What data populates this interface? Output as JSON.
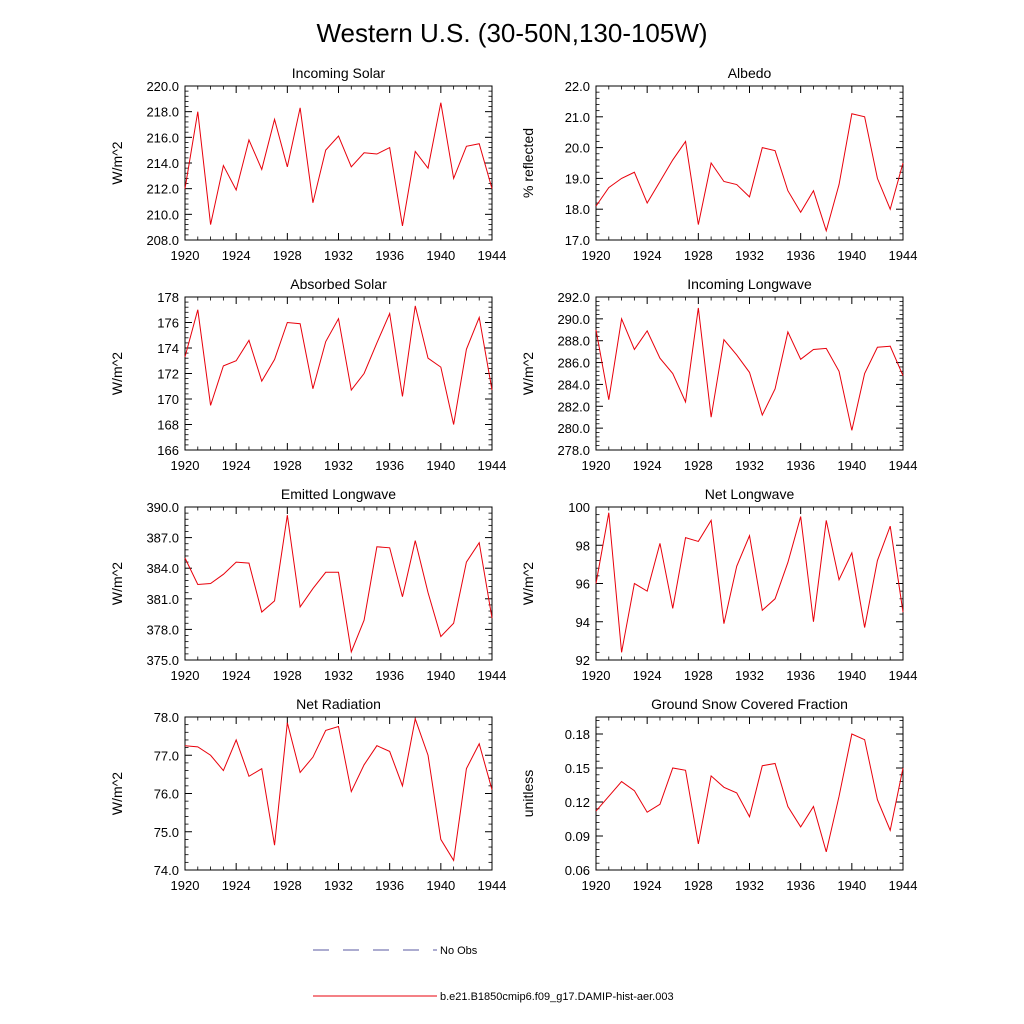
{
  "page_title": "Western U.S. (30-50N,130-105W)",
  "legend": {
    "obs_label": "No Obs",
    "model_label": "b.e21.B1850cmip6.f09_g17.DAMIP-hist-aer.003",
    "obs_color": "#5a5aa0",
    "model_color": "#e8000b"
  },
  "chart_data": [
    {
      "type": "line",
      "title": "Incoming Solar",
      "ylabel": "W/m^2",
      "x": [
        1920,
        1921,
        1922,
        1923,
        1924,
        1925,
        1926,
        1927,
        1928,
        1929,
        1930,
        1931,
        1932,
        1933,
        1934,
        1935,
        1936,
        1937,
        1938,
        1939,
        1940,
        1941,
        1942,
        1943,
        1944
      ],
      "y": [
        212.0,
        218.0,
        209.2,
        213.8,
        211.9,
        215.8,
        213.5,
        217.4,
        213.7,
        218.3,
        210.9,
        215.0,
        216.1,
        213.7,
        214.8,
        214.7,
        215.2,
        209.1,
        214.9,
        213.6,
        218.7,
        212.8,
        215.3,
        215.5,
        212.0
      ],
      "xlim": [
        1920,
        1944
      ],
      "ylim": [
        208.0,
        220.0
      ],
      "x_ticks": [
        1920,
        1924,
        1928,
        1932,
        1936,
        1940,
        1944
      ],
      "y_ticks": [
        "208.0",
        "210.0",
        "212.0",
        "214.0",
        "216.0",
        "218.0",
        "220.0"
      ],
      "grid": false
    },
    {
      "type": "line",
      "title": "Albedo",
      "ylabel": "% reflected",
      "x": [
        1920,
        1921,
        1922,
        1923,
        1924,
        1925,
        1926,
        1927,
        1928,
        1929,
        1930,
        1931,
        1932,
        1933,
        1934,
        1935,
        1936,
        1937,
        1938,
        1939,
        1940,
        1941,
        1942,
        1943,
        1944
      ],
      "y": [
        18.1,
        18.7,
        19.0,
        19.2,
        18.2,
        18.9,
        19.6,
        20.2,
        17.5,
        19.5,
        18.9,
        18.8,
        18.4,
        20.0,
        19.9,
        18.6,
        17.9,
        18.6,
        17.3,
        18.8,
        21.1,
        21.0,
        19.0,
        18.0,
        19.5
      ],
      "xlim": [
        1920,
        1944
      ],
      "ylim": [
        17.0,
        22.0
      ],
      "x_ticks": [
        1920,
        1924,
        1928,
        1932,
        1936,
        1940,
        1944
      ],
      "y_ticks": [
        "17.0",
        "18.0",
        "19.0",
        "20.0",
        "21.0",
        "22.0"
      ],
      "grid": false
    },
    {
      "type": "line",
      "title": "Absorbed Solar",
      "ylabel": "W/m^2",
      "x": [
        1920,
        1921,
        1922,
        1923,
        1924,
        1925,
        1926,
        1927,
        1928,
        1929,
        1930,
        1931,
        1932,
        1933,
        1934,
        1935,
        1936,
        1937,
        1938,
        1939,
        1940,
        1941,
        1942,
        1943,
        1944
      ],
      "y": [
        173.3,
        177.0,
        169.5,
        172.6,
        173.0,
        174.6,
        171.4,
        173.1,
        176.0,
        175.9,
        170.8,
        174.5,
        176.3,
        170.7,
        172.0,
        174.4,
        176.7,
        170.2,
        177.3,
        173.2,
        172.5,
        168.0,
        173.9,
        176.4,
        170.7
      ],
      "xlim": [
        1920,
        1944
      ],
      "ylim": [
        166,
        178
      ],
      "x_ticks": [
        1920,
        1924,
        1928,
        1932,
        1936,
        1940,
        1944
      ],
      "y_ticks": [
        "166",
        "168",
        "170",
        "172",
        "174",
        "176",
        "178"
      ],
      "grid": false
    },
    {
      "type": "line",
      "title": "Incoming Longwave",
      "ylabel": "W/m^2",
      "x": [
        1920,
        1921,
        1922,
        1923,
        1924,
        1925,
        1926,
        1927,
        1928,
        1929,
        1930,
        1931,
        1932,
        1933,
        1934,
        1935,
        1936,
        1937,
        1938,
        1939,
        1940,
        1941,
        1942,
        1943,
        1944
      ],
      "y": [
        289.0,
        282.6,
        290.0,
        287.2,
        288.9,
        286.4,
        285.0,
        282.4,
        291.0,
        281.0,
        288.1,
        286.7,
        285.1,
        281.2,
        283.6,
        288.8,
        286.3,
        287.2,
        287.3,
        285.2,
        279.8,
        285.0,
        287.4,
        287.5,
        284.8
      ],
      "xlim": [
        1920,
        1944
      ],
      "ylim": [
        278.0,
        292.0
      ],
      "x_ticks": [
        1920,
        1924,
        1928,
        1932,
        1936,
        1940,
        1944
      ],
      "y_ticks": [
        "278.0",
        "280.0",
        "282.0",
        "284.0",
        "286.0",
        "288.0",
        "290.0",
        "292.0"
      ],
      "grid": false
    },
    {
      "type": "line",
      "title": "Emitted Longwave",
      "ylabel": "W/m^2",
      "x": [
        1920,
        1921,
        1922,
        1923,
        1924,
        1925,
        1926,
        1927,
        1928,
        1929,
        1930,
        1931,
        1932,
        1933,
        1934,
        1935,
        1936,
        1937,
        1938,
        1939,
        1940,
        1941,
        1942,
        1943,
        1944
      ],
      "y": [
        385.0,
        382.4,
        382.5,
        383.4,
        384.6,
        384.5,
        379.7,
        380.8,
        389.2,
        380.2,
        382.0,
        383.6,
        383.6,
        375.8,
        378.9,
        386.1,
        386.0,
        381.2,
        386.7,
        381.6,
        377.3,
        378.6,
        384.6,
        386.5,
        379.1
      ],
      "xlim": [
        1920,
        1944
      ],
      "ylim": [
        375.0,
        390.0
      ],
      "x_ticks": [
        1920,
        1924,
        1928,
        1932,
        1936,
        1940,
        1944
      ],
      "y_ticks": [
        "375.0",
        "378.0",
        "381.0",
        "384.0",
        "387.0",
        "390.0"
      ],
      "grid": false
    },
    {
      "type": "line",
      "title": "Net Longwave",
      "ylabel": "W/m^2",
      "x": [
        1920,
        1921,
        1922,
        1923,
        1924,
        1925,
        1926,
        1927,
        1928,
        1929,
        1930,
        1931,
        1932,
        1933,
        1934,
        1935,
        1936,
        1937,
        1938,
        1939,
        1940,
        1941,
        1942,
        1943,
        1944
      ],
      "y": [
        96.0,
        99.7,
        92.4,
        96.0,
        95.6,
        98.1,
        94.7,
        98.4,
        98.2,
        99.3,
        93.9,
        96.9,
        98.5,
        94.6,
        95.2,
        97.1,
        99.5,
        94.0,
        99.3,
        96.2,
        97.6,
        93.7,
        97.2,
        99.0,
        94.5
      ],
      "xlim": [
        1920,
        1944
      ],
      "ylim": [
        92,
        100
      ],
      "x_ticks": [
        1920,
        1924,
        1928,
        1932,
        1936,
        1940,
        1944
      ],
      "y_ticks": [
        "92",
        "94",
        "96",
        "98",
        "100"
      ],
      "grid": false
    },
    {
      "type": "line",
      "title": "Net Radiation",
      "ylabel": "W/m^2",
      "x": [
        1920,
        1921,
        1922,
        1923,
        1924,
        1925,
        1926,
        1927,
        1928,
        1929,
        1930,
        1931,
        1932,
        1933,
        1934,
        1935,
        1936,
        1937,
        1938,
        1939,
        1940,
        1941,
        1942,
        1943,
        1944
      ],
      "y": [
        77.25,
        77.22,
        77.0,
        76.6,
        77.4,
        76.45,
        76.65,
        74.65,
        77.85,
        76.55,
        76.95,
        77.65,
        77.75,
        76.05,
        76.75,
        77.25,
        77.1,
        76.2,
        77.95,
        77.0,
        74.8,
        74.25,
        76.65,
        77.3,
        76.1
      ],
      "xlim": [
        1920,
        1944
      ],
      "ylim": [
        74.0,
        78.0
      ],
      "x_ticks": [
        1920,
        1924,
        1928,
        1932,
        1936,
        1940,
        1944
      ],
      "y_ticks": [
        "74.0",
        "75.0",
        "76.0",
        "77.0",
        "78.0"
      ],
      "grid": false
    },
    {
      "type": "line",
      "title": "Ground Snow Covered Fraction",
      "ylabel": "unitless",
      "x": [
        1920,
        1921,
        1922,
        1923,
        1924,
        1925,
        1926,
        1927,
        1928,
        1929,
        1930,
        1931,
        1932,
        1933,
        1934,
        1935,
        1936,
        1937,
        1938,
        1939,
        1940,
        1941,
        1942,
        1943,
        1944
      ],
      "y": [
        0.112,
        0.125,
        0.138,
        0.13,
        0.111,
        0.118,
        0.15,
        0.148,
        0.083,
        0.143,
        0.133,
        0.128,
        0.107,
        0.152,
        0.154,
        0.116,
        0.098,
        0.116,
        0.076,
        0.125,
        0.18,
        0.175,
        0.122,
        0.095,
        0.15
      ],
      "xlim": [
        1920,
        1944
      ],
      "ylim": [
        0.06,
        0.195
      ],
      "x_ticks": [
        1920,
        1924,
        1928,
        1932,
        1936,
        1940,
        1944
      ],
      "y_ticks": [
        "0.06",
        "0.09",
        "0.12",
        "0.15",
        "0.18"
      ],
      "grid": false
    }
  ]
}
